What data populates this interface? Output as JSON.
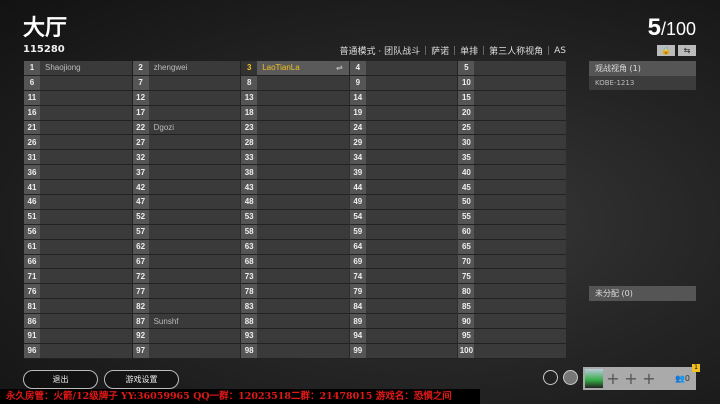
{
  "header": {
    "title": "大厅",
    "room_id": "115280",
    "player_count": "5",
    "player_max": "/100",
    "modes": [
      "普通模式 · 团队战斗",
      "萨诺",
      "单排",
      "第三人称视角",
      "AS"
    ]
  },
  "toolbar": {
    "lock_icon": "🔒",
    "swap_icon": "⇆"
  },
  "grid": {
    "slots": [
      [
        "1",
        "Shaojiong"
      ],
      [
        "2",
        "zhengwei"
      ],
      [
        "3",
        "LaoTianLa"
      ],
      [
        "4",
        ""
      ],
      [
        "5",
        ""
      ],
      [
        "6",
        ""
      ],
      [
        "7",
        ""
      ],
      [
        "8",
        ""
      ],
      [
        "9",
        ""
      ],
      [
        "10",
        ""
      ],
      [
        "11",
        ""
      ],
      [
        "12",
        ""
      ],
      [
        "13",
        ""
      ],
      [
        "14",
        ""
      ],
      [
        "15",
        ""
      ],
      [
        "16",
        ""
      ],
      [
        "17",
        ""
      ],
      [
        "18",
        ""
      ],
      [
        "19",
        ""
      ],
      [
        "20",
        ""
      ],
      [
        "21",
        ""
      ],
      [
        "22",
        "Dgozi"
      ],
      [
        "23",
        ""
      ],
      [
        "24",
        ""
      ],
      [
        "25",
        ""
      ],
      [
        "26",
        ""
      ],
      [
        "27",
        ""
      ],
      [
        "28",
        ""
      ],
      [
        "29",
        ""
      ],
      [
        "30",
        ""
      ],
      [
        "31",
        ""
      ],
      [
        "32",
        ""
      ],
      [
        "33",
        ""
      ],
      [
        "34",
        ""
      ],
      [
        "35",
        ""
      ],
      [
        "36",
        ""
      ],
      [
        "37",
        ""
      ],
      [
        "38",
        ""
      ],
      [
        "39",
        ""
      ],
      [
        "40",
        ""
      ],
      [
        "41",
        ""
      ],
      [
        "42",
        ""
      ],
      [
        "43",
        ""
      ],
      [
        "44",
        ""
      ],
      [
        "45",
        ""
      ],
      [
        "46",
        ""
      ],
      [
        "47",
        ""
      ],
      [
        "48",
        ""
      ],
      [
        "49",
        ""
      ],
      [
        "50",
        ""
      ],
      [
        "51",
        ""
      ],
      [
        "52",
        ""
      ],
      [
        "53",
        ""
      ],
      [
        "54",
        ""
      ],
      [
        "55",
        ""
      ],
      [
        "56",
        ""
      ],
      [
        "57",
        ""
      ],
      [
        "58",
        ""
      ],
      [
        "59",
        ""
      ],
      [
        "60",
        ""
      ],
      [
        "61",
        ""
      ],
      [
        "62",
        ""
      ],
      [
        "63",
        ""
      ],
      [
        "64",
        ""
      ],
      [
        "65",
        ""
      ],
      [
        "66",
        ""
      ],
      [
        "67",
        ""
      ],
      [
        "68",
        ""
      ],
      [
        "69",
        ""
      ],
      [
        "70",
        ""
      ],
      [
        "71",
        ""
      ],
      [
        "72",
        ""
      ],
      [
        "73",
        ""
      ],
      [
        "74",
        ""
      ],
      [
        "75",
        ""
      ],
      [
        "76",
        ""
      ],
      [
        "77",
        ""
      ],
      [
        "78",
        ""
      ],
      [
        "79",
        ""
      ],
      [
        "80",
        ""
      ],
      [
        "81",
        ""
      ],
      [
        "82",
        ""
      ],
      [
        "83",
        ""
      ],
      [
        "84",
        ""
      ],
      [
        "85",
        ""
      ],
      [
        "86",
        ""
      ],
      [
        "87",
        "Sunshf"
      ],
      [
        "88",
        ""
      ],
      [
        "89",
        ""
      ],
      [
        "90",
        ""
      ],
      [
        "91",
        ""
      ],
      [
        "92",
        ""
      ],
      [
        "93",
        ""
      ],
      [
        "94",
        ""
      ],
      [
        "95",
        ""
      ],
      [
        "96",
        ""
      ],
      [
        "97",
        ""
      ],
      [
        "98",
        ""
      ],
      [
        "99",
        ""
      ],
      [
        "100",
        ""
      ]
    ],
    "self_slot": "3",
    "self_color": "#f0c020"
  },
  "spectators": {
    "title": "观战视角 (1)",
    "items": [
      "KOBE-1213"
    ]
  },
  "unassigned": {
    "title": "未分配 (0)"
  },
  "buttons": {
    "exit": "退出",
    "settings": "游戏设置"
  },
  "banner": {
    "text": "永久房管：火箭/12级牌子 YY:36059965 QQ一群：12023518二群：21478015 游戏名：恐惧之间",
    "color": "#e01818"
  },
  "squad": {
    "group_count": "0",
    "badge": "1"
  }
}
